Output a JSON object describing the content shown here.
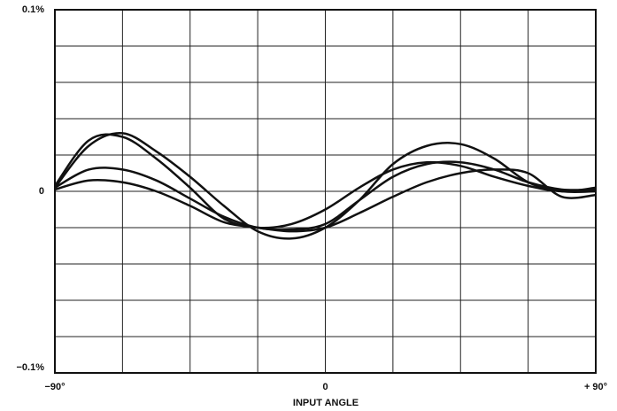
{
  "chart_data": {
    "type": "line",
    "xlabel": "INPUT ANGLE",
    "xlim": [
      -90,
      90
    ],
    "xticks": [
      {
        "value": -90,
        "label": "−90°"
      },
      {
        "value": -67.5,
        "label": null
      },
      {
        "value": -45,
        "label": null
      },
      {
        "value": -22.5,
        "label": null
      },
      0,
      {
        "value": 22.5,
        "label": null
      },
      {
        "value": 45,
        "label": null
      },
      {
        "value": 67.5,
        "label": null
      },
      {
        "value": 90,
        "label": "+ 90°"
      }
    ],
    "ylim": [
      -0.1,
      0.1
    ],
    "yticks": [
      {
        "value": -0.1,
        "label": "−0.1%"
      },
      {
        "value": -0.08,
        "label": null
      },
      {
        "value": -0.06,
        "label": null
      },
      {
        "value": -0.04,
        "label": null
      },
      {
        "value": -0.02,
        "label": null
      },
      0,
      {
        "value": 0.02,
        "label": null
      },
      {
        "value": 0.04,
        "label": null
      },
      {
        "value": 0.06,
        "label": null
      },
      {
        "value": 0.08,
        "label": null
      },
      {
        "value": 0.1,
        "label": "0.1%"
      }
    ],
    "grid": true,
    "x": [
      -90,
      -78.75,
      -67.5,
      -56.25,
      -45,
      -33.75,
      -22.5,
      -11.25,
      0,
      11.25,
      22.5,
      33.75,
      45,
      56.25,
      67.5,
      78.75,
      90
    ],
    "series": [
      {
        "color": "#111111",
        "values": [
          0.002,
          0.025,
          0.032,
          0.022,
          0.008,
          -0.008,
          -0.022,
          -0.026,
          -0.02,
          -0.005,
          0.015,
          0.025,
          0.026,
          0.018,
          0.005,
          0,
          0
        ]
      },
      {
        "color": "#111111",
        "values": [
          0.003,
          0.028,
          0.03,
          0.018,
          0.002,
          -0.015,
          -0.02,
          -0.018,
          -0.01,
          0.002,
          0.012,
          0.016,
          0.014,
          0.008,
          0.003,
          0,
          0.002
        ]
      },
      {
        "color": "#111111",
        "values": [
          0.002,
          0.012,
          0.012,
          0.006,
          -0.004,
          -0.014,
          -0.02,
          -0.021,
          -0.018,
          -0.005,
          0.008,
          0.015,
          0.016,
          0.012,
          0.005,
          0.001,
          0.001
        ]
      },
      {
        "color": "#111111",
        "values": [
          0.001,
          0.006,
          0.005,
          0,
          -0.008,
          -0.017,
          -0.02,
          -0.022,
          -0.02,
          -0.012,
          -0.003,
          0.005,
          0.01,
          0.012,
          0.01,
          -0.003,
          -0.002
        ]
      }
    ]
  }
}
